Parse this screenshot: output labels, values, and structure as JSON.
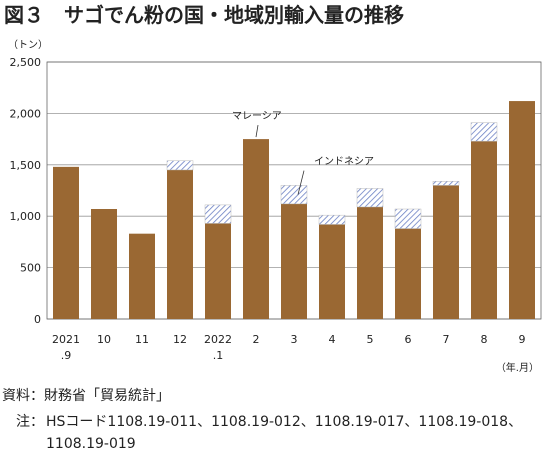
{
  "chart_data": {
    "type": "stacked_bar",
    "title": "図３　サゴでん粉の国・地域別輸入量の推移",
    "y_unit": "（トン）",
    "x_unit": "（年.月）",
    "categories": [
      [
        "2021",
        ".9"
      ],
      [
        "10"
      ],
      [
        "11"
      ],
      [
        "12"
      ],
      [
        "2022",
        ".1"
      ],
      [
        "2"
      ],
      [
        "3"
      ],
      [
        "4"
      ],
      [
        "5"
      ],
      [
        "6"
      ],
      [
        "7"
      ],
      [
        "8"
      ],
      [
        "9"
      ]
    ],
    "series": [
      {
        "name": "マレーシア",
        "color": "#9a6833",
        "values": [
          1480,
          1070,
          830,
          1450,
          930,
          1750,
          1120,
          920,
          1090,
          880,
          1300,
          1730,
          2120
        ]
      },
      {
        "name": "インドネシア",
        "color": "#6a7fc4",
        "values": [
          0,
          0,
          0,
          90,
          180,
          0,
          180,
          90,
          180,
          190,
          40,
          180,
          0
        ]
      }
    ],
    "ylim": [
      0,
      2500
    ],
    "yticks": [
      0,
      500,
      {
        "value": 1000,
        "label": "1,000"
      },
      {
        "value": 1500,
        "label": "1,500"
      },
      {
        "value": 2000,
        "label": "2,000"
      },
      {
        "value": 2500,
        "label": "2,500"
      }
    ],
    "grid": true,
    "source": "資料：財務省「貿易統計」",
    "note_label": "注：",
    "note_lines": [
      "HSコード1108.19-011、1108.19-012、1108.19-017、1108.19-018、",
      "1108.19-019"
    ]
  }
}
